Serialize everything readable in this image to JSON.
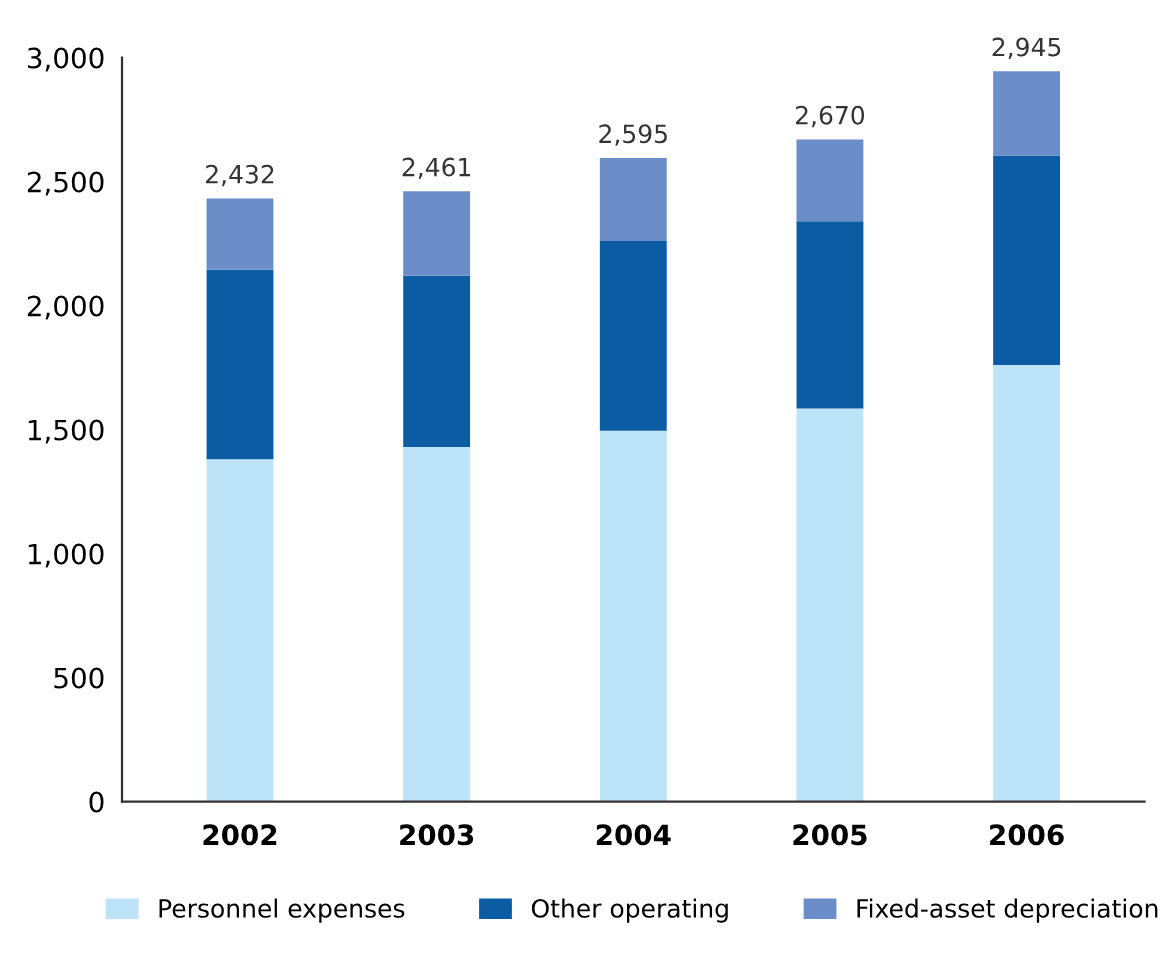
{
  "chart_data": {
    "type": "bar",
    "stacked": true,
    "categories": [
      "2002",
      "2003",
      "2004",
      "2005",
      "2006"
    ],
    "series": [
      {
        "name": "Personnel expenses",
        "color": "#bde3f8",
        "values": [
          1380,
          1430,
          1495,
          1585,
          1760
        ]
      },
      {
        "name": "Other operating",
        "color": "#0b5ca3",
        "values": [
          765,
          690,
          765,
          755,
          845
        ]
      },
      {
        "name": "Fixed-asset depreciation",
        "color": "#6b8dc8",
        "values": [
          287,
          341,
          335,
          330,
          340
        ]
      }
    ],
    "totals": [
      "2,432",
      "2,461",
      "2,595",
      "2,670",
      "2,945"
    ],
    "ylim": [
      0,
      3000
    ],
    "yticks": [
      {
        "value": 0,
        "label": "0"
      },
      {
        "value": 500,
        "label": "500"
      },
      {
        "value": 1000,
        "label": "1,000"
      },
      {
        "value": 1500,
        "label": "1,500"
      },
      {
        "value": 2000,
        "label": "2,000"
      },
      {
        "value": 2500,
        "label": "2,500"
      },
      {
        "value": 3000,
        "label": "3,000"
      }
    ],
    "grid": false,
    "legend": "bottom"
  }
}
